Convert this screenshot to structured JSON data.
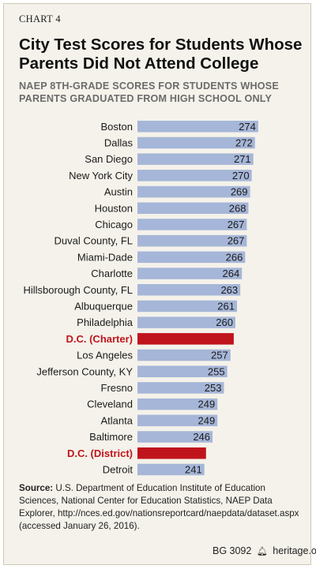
{
  "header": {
    "chart_label": "CHART 4",
    "title": "City Test Scores for Students Whose Parents Did Not Attend College",
    "subtitle": "NAEP 8TH-GRADE  SCORES FOR STUDENTS WHOSE PARENTS GRADUATED FROM HIGH SCHOOL ONLY"
  },
  "colors": {
    "bar": "#a6b6d8",
    "highlight": "#c0141c",
    "background": "#f4f2ea"
  },
  "chart_data": {
    "type": "bar",
    "orientation": "horizontal",
    "categories": [
      "Boston",
      "Dallas",
      "San Diego",
      "New York City",
      "Austin",
      "Houston",
      "Chicago",
      "Duval County, FL",
      "Miami-Dade",
      "Charlotte",
      "Hillsborough County, FL",
      "Albuquerque",
      "Philadelphia",
      "D.C. (Charter)",
      "Los Angeles",
      "Jefferson County, KY",
      "Fresno",
      "Cleveland",
      "Atlanta",
      "Baltimore",
      "D.C. (District)",
      "Detroit"
    ],
    "values": [
      274,
      272,
      271,
      270,
      269,
      268,
      267,
      267,
      266,
      264,
      263,
      261,
      260,
      259,
      257,
      255,
      253,
      249,
      249,
      246,
      242,
      241
    ],
    "highlighted": [
      "D.C. (Charter)",
      "D.C. (District)"
    ],
    "xlim": [
      200,
      276
    ],
    "grid": false,
    "title": "City Test Scores for Students Whose Parents Did Not Attend College",
    "xlabel": "",
    "ylabel": ""
  },
  "source": {
    "label": "Source:",
    "text": " U.S. Department of Education Institute of Education Sciences, National Center for Education Statistics, NAEP Data Explorer, http://nces.ed.gov/nationsreportcard/naepdata/dataset.aspx (accessed January 26, 2016)."
  },
  "footer": {
    "code": "BG 3092",
    "site": "heritage.org",
    "icon": "liberty-bell-icon"
  }
}
